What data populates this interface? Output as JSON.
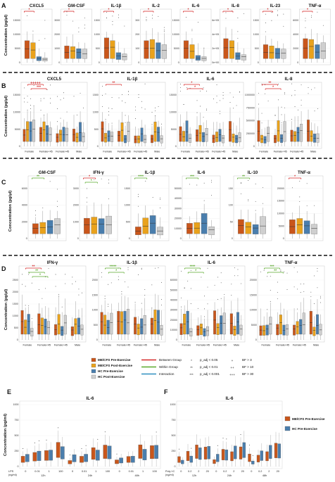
{
  "colors": {
    "mecfs_pre": "#c9561b",
    "mecfs_post": "#e9a21c",
    "hc_pre": "#4a7ead",
    "hc_post": "#cfcfcf",
    "between": "#d62a2a",
    "within": "#5aaa2c",
    "interaction": "#2f8fbf"
  },
  "panels": {
    "A": {
      "label": "A",
      "ylabel": "Concentration (pg/µl)",
      "facets": [
        {
          "title": "CXCL5",
          "ticks": [
            "0",
            "5000",
            "10000",
            "15000"
          ],
          "bracket": "between",
          "stars": "*",
          "box_levels": [
            0.55,
            0.5,
            0.15,
            0.12
          ]
        },
        {
          "title": "GM-CSF",
          "ticks": [
            "0",
            "1000",
            "2000",
            "3000"
          ],
          "bracket": "between",
          "stars": "*",
          "box_levels": [
            0.42,
            0.4,
            0.35,
            0.34
          ]
        },
        {
          "title": "IL-1β",
          "ticks": [
            "0",
            "500",
            "1000",
            "1500"
          ],
          "bracket": "between",
          "stars": "*",
          "box_levels": [
            0.62,
            0.55,
            0.25,
            0.22
          ]
        },
        {
          "title": "IL-2",
          "ticks": [
            "0",
            "100",
            "200",
            "300"
          ],
          "bracket": "between",
          "stars": "*",
          "box_levels": [
            0.55,
            0.58,
            0.5,
            0.45
          ]
        },
        {
          "title": "IL-6",
          "ticks": [
            "0",
            "5000",
            "10000",
            "15000"
          ],
          "bracket": "between",
          "stars": "*",
          "box_levels": [
            0.55,
            0.45,
            0.18,
            0.15
          ]
        },
        {
          "title": "IL-8",
          "ticks": [
            "0e+00",
            "2e+05",
            "4e+05",
            "6e+05"
          ],
          "bracket": "between",
          "stars": "*",
          "box_levels": [
            0.6,
            0.55,
            0.25,
            0.2
          ]
        },
        {
          "title": "IL-23",
          "ticks": [
            "0",
            "500",
            "1000",
            "1500"
          ],
          "bracket": "between",
          "stars": "*",
          "box_levels": [
            0.45,
            0.42,
            0.36,
            0.34
          ]
        },
        {
          "title": "TNF-α",
          "ticks": [
            "0",
            "2000",
            "4000",
            "6000"
          ],
          "bracket": "between",
          "stars": "*",
          "box_levels": [
            0.6,
            0.58,
            0.45,
            0.5
          ]
        }
      ]
    },
    "B": {
      "label": "B",
      "ylabel": "Concentration (pg/µl)",
      "groups": [
        "Female",
        "Female<45",
        "Female>45",
        "Male"
      ],
      "facets": [
        {
          "title": "CXCL5",
          "ticks": [
            "0",
            "5000",
            "10000",
            "15000"
          ],
          "marks": [
            {
              "type": "between",
              "stars": "+++++"
            },
            {
              "type": "between",
              "stars": "***"
            }
          ]
        },
        {
          "title": "IL-1β",
          "ticks": [
            "0",
            "500",
            "1000",
            "1500"
          ],
          "marks": [
            {
              "type": "between",
              "stars": "**"
            }
          ]
        },
        {
          "title": "IL-6",
          "ticks": [
            "0",
            "5000",
            "10000",
            "15000"
          ],
          "marks": [
            {
              "type": "between",
              "stars": "*"
            },
            {
              "type": "between",
              "stars": "*"
            }
          ]
        },
        {
          "title": "IL-8",
          "ticks": [
            "0",
            "250000",
            "500000",
            "750000",
            "1000000"
          ],
          "marks": [
            {
              "type": "between",
              "stars": "**"
            },
            {
              "type": "between",
              "stars": "*"
            }
          ]
        }
      ]
    },
    "C": {
      "label": "C",
      "ylabel": "Concentration (pg/µl)",
      "facets": [
        {
          "title": "GM-CSF",
          "ticks": [
            "0",
            "2000",
            "4000",
            "6000"
          ],
          "marks": [
            {
              "type": "within",
              "stars": "**"
            }
          ]
        },
        {
          "title": "IFN-γ",
          "ticks": [
            "0",
            "1000",
            "2000",
            "3000"
          ],
          "marks": [
            {
              "type": "between",
              "stars": "*"
            },
            {
              "type": "within",
              "stars": "*"
            }
          ]
        },
        {
          "title": "IL-1β",
          "ticks": [
            "0",
            "500",
            "1000",
            "1500"
          ],
          "marks": [
            {
              "type": "within",
              "stars": "****"
            }
          ]
        },
        {
          "title": "IL-6",
          "ticks": [
            "0",
            "10000",
            "20000",
            "30000",
            "40000",
            "50000"
          ],
          "marks": [
            {
              "type": "within",
              "stars": "***"
            }
          ]
        },
        {
          "title": "IL-10",
          "ticks": [
            "0",
            "50",
            "100",
            "150"
          ],
          "marks": [
            {
              "type": "within",
              "stars": "**"
            }
          ]
        },
        {
          "title": "TNF-α",
          "ticks": [
            "0",
            "5000",
            "10000",
            "15000",
            "20000"
          ],
          "marks": [
            {
              "type": "between",
              "stars": "*"
            }
          ]
        }
      ]
    },
    "D": {
      "label": "D",
      "ylabel": "Concentration (pg/µl)",
      "groups": [
        "Female",
        "Female<45",
        "Female>45",
        "Male"
      ],
      "facets": [
        {
          "title": "IFN-γ",
          "ticks": [
            "0",
            "500",
            "1000",
            "1500",
            "2000",
            "2500"
          ],
          "marks": [
            {
              "type": "between",
              "stars": "**"
            },
            {
              "type": "within",
              "stars": "**"
            },
            {
              "type": "within",
              "stars": "*"
            }
          ]
        },
        {
          "title": "IL-1β",
          "ticks": [
            "0",
            "500",
            "1000",
            "1500",
            "2000"
          ],
          "marks": [
            {
              "type": "within",
              "stars": "*****"
            },
            {
              "type": "within",
              "stars": "*"
            }
          ]
        },
        {
          "title": "IL-6",
          "ticks": [
            "0",
            "10000",
            "20000",
            "30000",
            "40000",
            "50000",
            "60000"
          ],
          "marks": [
            {
              "type": "within",
              "stars": "****"
            },
            {
              "type": "within",
              "stars": "*"
            }
          ]
        },
        {
          "title": "TNF-α",
          "ticks": [
            "0",
            "5000",
            "10000",
            "15000",
            "20000"
          ],
          "marks": [
            {
              "type": "within",
              "stars": "***"
            },
            {
              "type": "within",
              "stars": "**"
            }
          ]
        }
      ]
    },
    "E": {
      "label": "E",
      "title": "IL-6",
      "ylabel": "Concentration (pg/ml)",
      "axis_label": "LPS\n(ng/ml)",
      "times": [
        "12h",
        "24h",
        "48h"
      ],
      "doses": [
        "0",
        "0.01",
        "1",
        "100"
      ],
      "ticks": [
        "0",
        "250",
        "500",
        "750",
        "1000"
      ]
    },
    "F": {
      "label": "F",
      "title": "IL-6",
      "axis_label": "Poly I:C\n(ng/ml)",
      "times": [
        "12h",
        "24h",
        "48h"
      ],
      "doses": [
        "0",
        "0.2",
        "2",
        "20"
      ],
      "ticks": [
        "0",
        "250",
        "500",
        "750",
        "1000"
      ],
      "legend": [
        "ME/CFS Pre-Exercise",
        "HC Pre-Exercise"
      ]
    }
  },
  "legend": {
    "groups": [
      "ME/CFS Pre-Exercise",
      "ME/CFS Post-Exercise",
      "HC Pre-Exercise",
      "HC Post-Exercise"
    ],
    "lines": [
      "Between Group",
      "Within Group",
      "Interaction"
    ],
    "p_symbols": [
      "*",
      "**",
      "***"
    ],
    "p_texts": [
      "p_adj < 0.05",
      "p_adj < 0.01",
      "p_adj < 0.001"
    ],
    "bf_symbols": [
      "+",
      "++",
      "+++"
    ],
    "bf_texts": [
      "BF > 3",
      "BF > 10",
      "BF > 30"
    ]
  }
}
